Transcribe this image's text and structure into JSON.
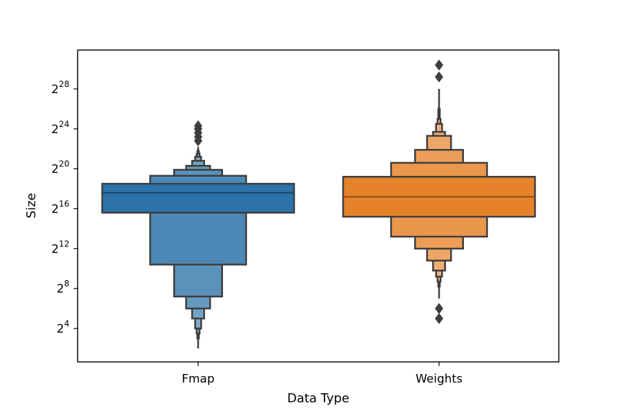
{
  "chart_data": {
    "type": "boxen",
    "xlabel": "Data Type",
    "ylabel": "Size",
    "y_scale": "log2",
    "ylim_log2": [
      0.65,
      31.9
    ],
    "y_ticks": [
      {
        "base": "2",
        "exp": "4",
        "log2": 4
      },
      {
        "base": "2",
        "exp": "8",
        "log2": 8
      },
      {
        "base": "2",
        "exp": "12",
        "log2": 12
      },
      {
        "base": "2",
        "exp": "16",
        "log2": 16
      },
      {
        "base": "2",
        "exp": "20",
        "log2": 20
      },
      {
        "base": "2",
        "exp": "24",
        "log2": 24
      },
      {
        "base": "2",
        "exp": "28",
        "log2": 28
      }
    ],
    "grid": false,
    "categories": [
      "Fmap",
      "Weights"
    ],
    "series": [
      {
        "category": "Fmap",
        "color": "#2b73a8",
        "median_log2": 17.6,
        "boxes_log2": [
          [
            15.6,
            18.5
          ],
          [
            10.4,
            19.3
          ],
          [
            7.2,
            19.9
          ],
          [
            6.0,
            20.3
          ],
          [
            5.0,
            20.8
          ],
          [
            4.0,
            21.2
          ],
          [
            3.5,
            21.5
          ],
          [
            3.0,
            21.8
          ]
        ],
        "whisker_log2": [
          2.0,
          22.2
        ],
        "outliers_log2": [
          22.8,
          23.2,
          23.6,
          24.0,
          24.3
        ]
      },
      {
        "category": "Weights",
        "color": "#e6832a",
        "median_log2": 17.2,
        "boxes_log2": [
          [
            15.2,
            19.2
          ],
          [
            13.2,
            20.6
          ],
          [
            12.0,
            21.9
          ],
          [
            10.8,
            23.3
          ],
          [
            9.8,
            23.7
          ],
          [
            9.2,
            24.5
          ],
          [
            8.7,
            25.0
          ],
          [
            8.2,
            26.0
          ]
        ],
        "whisker_log2": [
          7.0,
          28.0
        ],
        "outliers_log2": [
          5.0,
          6.0,
          29.2,
          30.4
        ]
      }
    ]
  }
}
